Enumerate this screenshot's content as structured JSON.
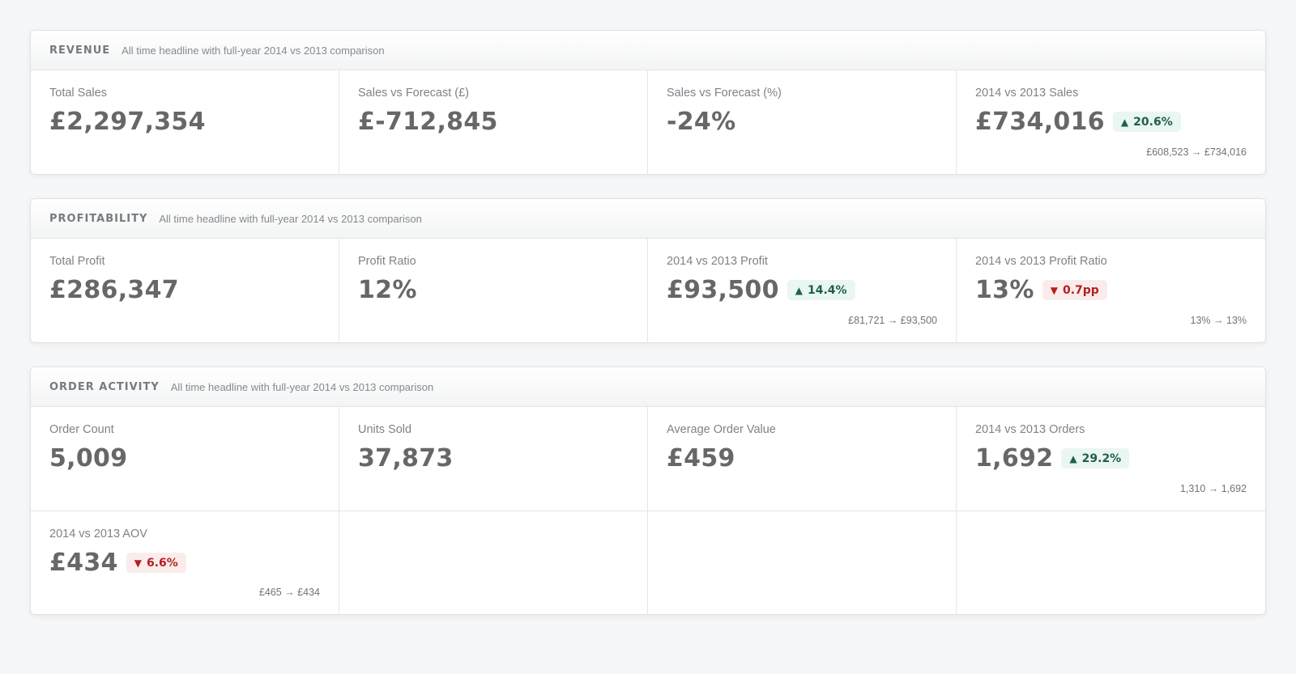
{
  "panels": [
    {
      "title": "REVENUE",
      "subtitle": "All time headline with full-year 2014 vs 2013 comparison",
      "tiles": [
        {
          "label": "Total Sales",
          "value": "£2,297,354"
        },
        {
          "label": "Sales vs Forecast (£)",
          "value": "£-712,845"
        },
        {
          "label": "Sales vs Forecast (%)",
          "value": "-24%"
        },
        {
          "label": "2014 vs 2013 Sales",
          "value": "£734,016",
          "badge": "20.6%",
          "direction": "up",
          "compare": "£608,523 → £734,016"
        }
      ]
    },
    {
      "title": "PROFITABILITY",
      "subtitle": "All time headline with full-year 2014 vs 2013 comparison",
      "tiles": [
        {
          "label": "Total Profit",
          "value": "£286,347"
        },
        {
          "label": "Profit Ratio",
          "value": "12%"
        },
        {
          "label": "2014 vs 2013 Profit",
          "value": "£93,500",
          "badge": "14.4%",
          "direction": "up",
          "compare": "£81,721 → £93,500"
        },
        {
          "label": "2014 vs 2013 Profit Ratio",
          "value": "13%",
          "badge": "0.7pp",
          "direction": "down",
          "compare": "13% → 13%"
        }
      ]
    },
    {
      "title": "ORDER ACTIVITY",
      "subtitle": "All time headline with full-year 2014 vs 2013 comparison",
      "tiles": [
        {
          "label": "Order Count",
          "value": "5,009"
        },
        {
          "label": "Units Sold",
          "value": "37,873"
        },
        {
          "label": "Average Order Value",
          "value": "£459"
        },
        {
          "label": "2014 vs 2013 Orders",
          "value": "1,692",
          "badge": "29.2%",
          "direction": "up",
          "compare": "1,310 → 1,692"
        },
        {
          "label": "2014 vs 2013 AOV",
          "value": "£434",
          "badge": "6.6%",
          "direction": "down",
          "compare": "£465 → £434"
        },
        {},
        {},
        {}
      ]
    }
  ],
  "icons": {
    "up": "triangle-up-icon",
    "down": "triangle-down-icon"
  },
  "colors": {
    "up_text": "#1f5f4c",
    "up_bg": "#eaf6f1",
    "down_text": "#b42020",
    "down_bg": "#fbecec"
  }
}
